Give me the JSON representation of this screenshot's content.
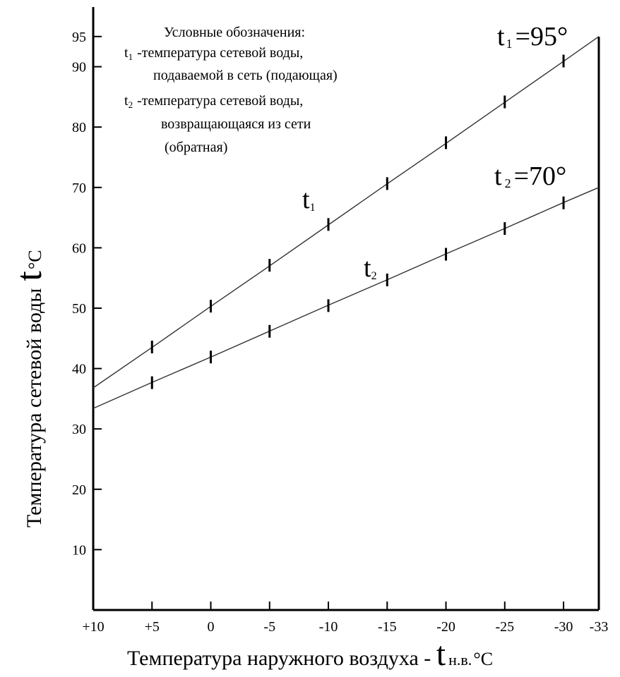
{
  "chart_data": {
    "type": "line",
    "xlabel_text": "Температура наружного воздуха  - ",
    "xlabel_symbol": "t",
    "xlabel_sub": "н.в.",
    "xlabel_unit": "°C",
    "ylabel_text": "Температура сетевой воды",
    "ylabel_symbol": "t",
    "ylabel_unit": "°C",
    "x_ticks": [
      "+10",
      "+5",
      "0",
      "-5",
      "-10",
      "-15",
      "-20",
      "-25",
      "-30",
      "-33"
    ],
    "x_tick_values": [
      10,
      5,
      0,
      -5,
      -10,
      -15,
      -20,
      -25,
      -30,
      -33
    ],
    "y_ticks": [
      "10",
      "20",
      "30",
      "40",
      "50",
      "60",
      "70",
      "80",
      "90",
      "95"
    ],
    "y_tick_values": [
      10,
      20,
      30,
      40,
      50,
      60,
      70,
      80,
      90,
      95
    ],
    "xlim": [
      10,
      -33
    ],
    "ylim": [
      0,
      100
    ],
    "grid": false,
    "legend": {
      "title": "Условные обозначения:",
      "entries": [
        {
          "symbol": "t",
          "sub": "1",
          "line1": "-температура сетевой воды,",
          "line2": "подаваемой в сеть (подающая)"
        },
        {
          "symbol": "t",
          "sub": "2",
          "line1": "-температура сетевой воды,",
          "line2": "возвращающаяся из сети",
          "line3": "(обратная)"
        }
      ]
    },
    "series": [
      {
        "symbol": "t",
        "sub": "1",
        "end_label_symbol": "t",
        "end_label_sub": "1",
        "end_label_value": "=95°",
        "x": [
          10,
          5,
          0,
          -5,
          -10,
          -15,
          -20,
          -25,
          -30,
          -33
        ],
        "y": [
          36.8,
          43.5,
          50.3,
          57.0,
          63.8,
          70.6,
          77.3,
          84.1,
          90.9,
          95
        ],
        "marker_x": [
          5,
          0,
          -5,
          -10,
          -15,
          -20,
          -25,
          -30
        ]
      },
      {
        "symbol": "t",
        "sub": "2",
        "end_label_symbol": "t",
        "end_label_sub": "2",
        "end_label_value": "=70°",
        "x": [
          10,
          5,
          0,
          -5,
          -10,
          -15,
          -20,
          -25,
          -30,
          -33
        ],
        "y": [
          33.4,
          37.7,
          41.9,
          46.2,
          50.5,
          54.7,
          59.0,
          63.2,
          67.5,
          70
        ],
        "marker_x": [
          5,
          0,
          -5,
          -10,
          -15,
          -20,
          -25,
          -30
        ]
      }
    ]
  }
}
